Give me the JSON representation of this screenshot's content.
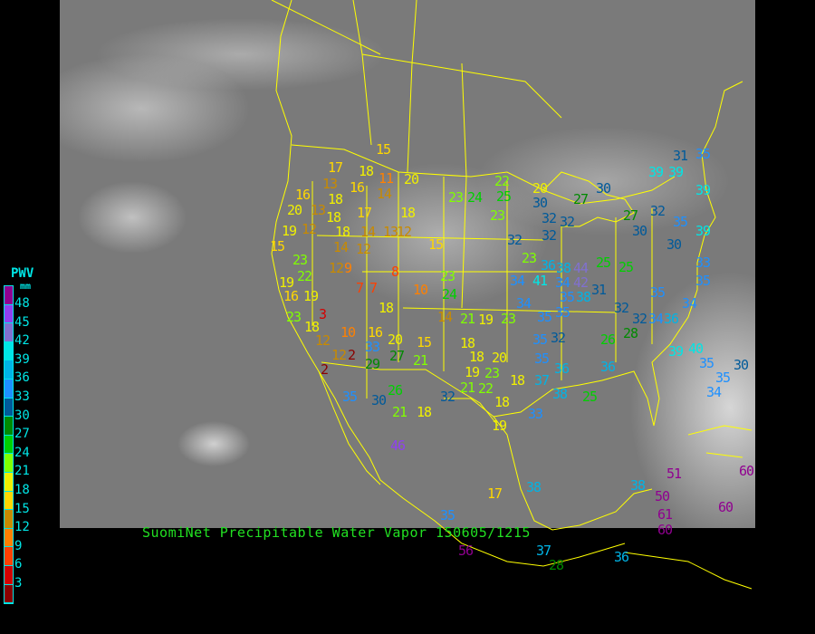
{
  "caption": "SuomiNet Precipitable Water Vapor 150605/1215",
  "legend": {
    "title": "PWV",
    "unit": "mm",
    "labels": [
      "48",
      "45",
      "42",
      "39",
      "36",
      "33",
      "30",
      "27",
      "24",
      "21",
      "18",
      "15",
      "12",
      "9",
      "6",
      "3"
    ],
    "colors": [
      "#900090",
      "#9040f0",
      "#8070d0",
      "#00e6e6",
      "#00b4e6",
      "#1e90ff",
      "#005a9a",
      "#008a00",
      "#00d000",
      "#80ff00",
      "#f0f000",
      "#ffd700",
      "#c88a00",
      "#ff8000",
      "#ff4000",
      "#d40000",
      "#8b0000"
    ]
  },
  "map": {
    "border_color": "#ffff00",
    "background": "satellite-infrared-imagery"
  },
  "stations": [
    "15",
    "17",
    "18",
    "11",
    "20",
    "16",
    "13",
    "18",
    "16",
    "14",
    "20",
    "13",
    "18",
    "17",
    "18",
    "19",
    "12",
    "18",
    "14",
    "13",
    "12",
    "15",
    "14",
    "12",
    "15",
    "23",
    "12",
    "9",
    "8",
    "23",
    "19",
    "22",
    "16",
    "19",
    "7",
    "7",
    "10",
    "24",
    "23",
    "3",
    "18",
    "14",
    "21",
    "19",
    "23",
    "18",
    "10",
    "16",
    "12",
    "20",
    "15",
    "18",
    "12",
    "2",
    "33",
    "27",
    "21",
    "18",
    "20",
    "2",
    "29",
    "19",
    "23",
    "18",
    "35",
    "30",
    "26",
    "21",
    "18",
    "32",
    "21",
    "22",
    "18",
    "19",
    "33",
    "22",
    "23",
    "24",
    "25",
    "23",
    "32",
    "23",
    "20",
    "30",
    "32",
    "32",
    "32",
    "27",
    "30",
    "34",
    "36",
    "38",
    "44",
    "41",
    "34",
    "42",
    "35",
    "38",
    "34",
    "35",
    "35",
    "35",
    "32",
    "35",
    "36",
    "37",
    "38",
    "25",
    "25",
    "25",
    "31",
    "32",
    "32",
    "34",
    "36",
    "34",
    "26",
    "28",
    "36",
    "39",
    "40",
    "35",
    "32",
    "27",
    "30",
    "30",
    "35",
    "39",
    "39",
    "39",
    "31",
    "35",
    "39",
    "35",
    "33",
    "35",
    "34",
    "35",
    "30",
    "17",
    "38",
    "38",
    "51",
    "50",
    "61",
    "60",
    "60",
    "60",
    "35",
    "56",
    "37",
    "28",
    "36",
    "46"
  ]
}
